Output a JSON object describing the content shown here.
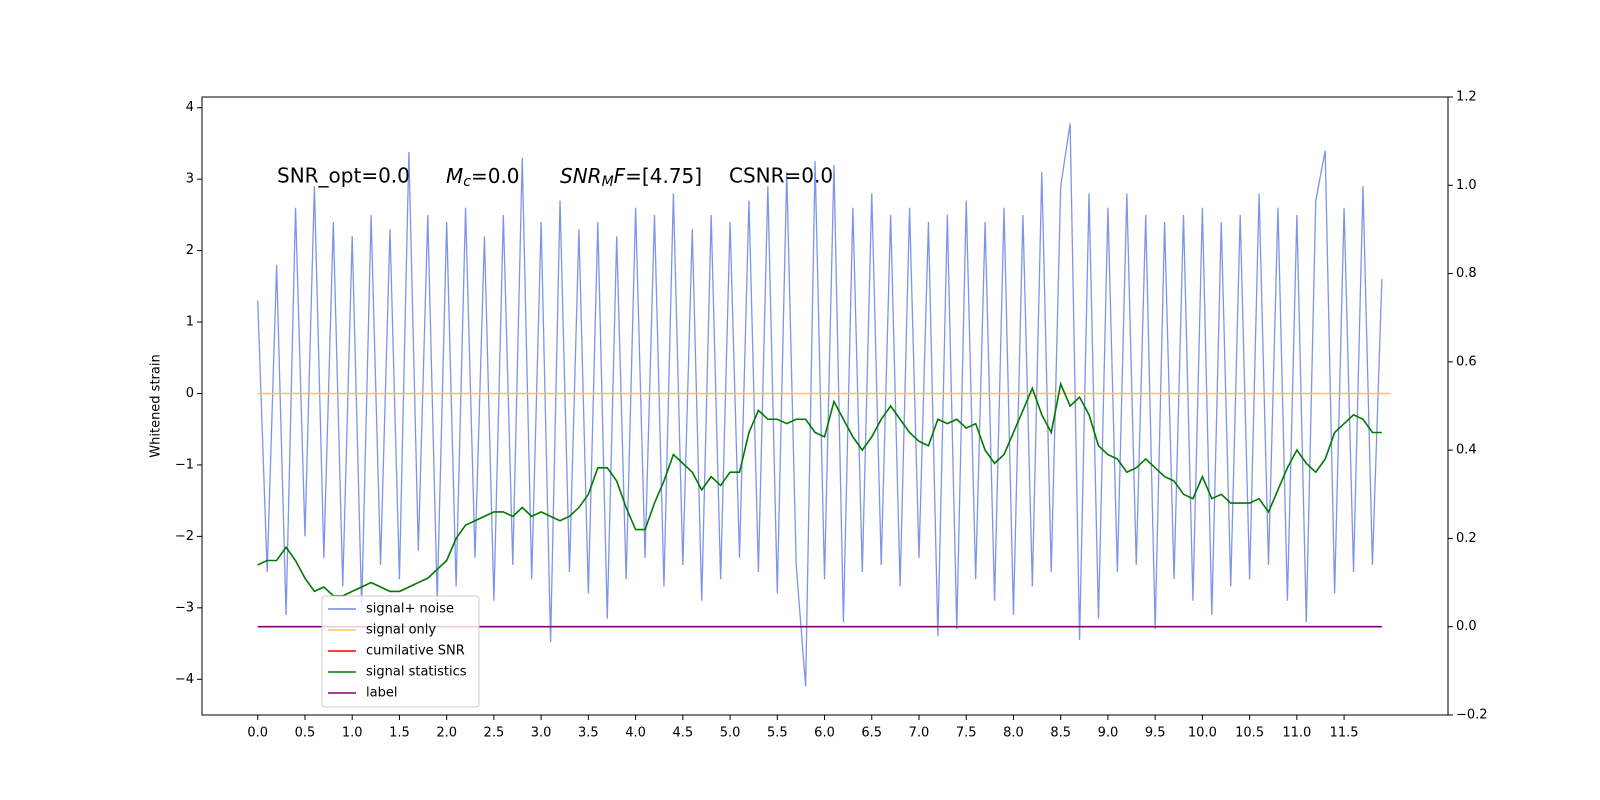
{
  "chart_data": {
    "type": "line",
    "ylabel": "Whitened strain",
    "annotations": [
      {
        "text": "SNR_opt=0.0"
      },
      {
        "main": "M",
        "sub": "c",
        "rest": "=0.0"
      },
      {
        "main": "SNR",
        "sub": "M",
        "mid": "F",
        "rest": "=[4.75]"
      },
      {
        "text": "CSNR=0.0"
      }
    ],
    "x": [
      0,
      0.1,
      0.2,
      0.3,
      0.4,
      0.5,
      0.6,
      0.7,
      0.8,
      0.9,
      1,
      1.1,
      1.2,
      1.3,
      1.4,
      1.5,
      1.6,
      1.7,
      1.8,
      1.9,
      2,
      2.1,
      2.2,
      2.3,
      2.4,
      2.5,
      2.6,
      2.7,
      2.8,
      2.9,
      3,
      3.1,
      3.2,
      3.3,
      3.4,
      3.5,
      3.6,
      3.7,
      3.8,
      3.9,
      4,
      4.1,
      4.2,
      4.3,
      4.4,
      4.5,
      4.6,
      4.7,
      4.8,
      4.9,
      5,
      5.1,
      5.2,
      5.3,
      5.4,
      5.5,
      5.6,
      5.7,
      5.8,
      5.9,
      6,
      6.1,
      6.2,
      6.3,
      6.4,
      6.5,
      6.6,
      6.7,
      6.8,
      6.9,
      7,
      7.1,
      7.2,
      7.3,
      7.4,
      7.5,
      7.6,
      7.7,
      7.8,
      7.9,
      8,
      8.1,
      8.2,
      8.3,
      8.4,
      8.5,
      8.6,
      8.7,
      8.8,
      8.9,
      9,
      9.1,
      9.2,
      9.3,
      9.4,
      9.5,
      9.6,
      9.7,
      9.8,
      9.9,
      10,
      10.1,
      10.2,
      10.3,
      10.4,
      10.5,
      10.6,
      10.7,
      10.8,
      10.9,
      11,
      11.1,
      11.2,
      11.3,
      11.4,
      11.5,
      11.6,
      11.7,
      11.8,
      11.9
    ],
    "series": [
      {
        "name": "signal+ noise",
        "color": "#6f8ae6",
        "values": [
          1.3,
          -2.5,
          1.8,
          -3.1,
          2.6,
          -2.0,
          2.9,
          -2.3,
          2.4,
          -2.7,
          2.2,
          -3.0,
          2.5,
          -2.4,
          2.3,
          -2.6,
          3.38,
          -2.2,
          2.5,
          -2.9,
          2.4,
          -2.7,
          2.6,
          -2.3,
          2.2,
          -2.9,
          2.5,
          -2.4,
          3.3,
          -2.6,
          2.4,
          -3.48,
          2.7,
          -2.5,
          2.3,
          -2.8,
          2.4,
          -3.15,
          2.2,
          -2.6,
          2.6,
          -2.3,
          2.5,
          -2.7,
          2.8,
          -2.4,
          2.3,
          -2.9,
          2.5,
          -2.6,
          2.4,
          -2.3,
          2.7,
          -2.5,
          2.9,
          -2.8,
          3.1,
          -2.4,
          -4.1,
          3.25,
          -2.6,
          3.2,
          -3.2,
          2.6,
          -2.5,
          2.8,
          -2.4,
          2.5,
          -2.7,
          2.6,
          -2.3,
          2.4,
          -3.4,
          2.5,
          -3.3,
          2.7,
          -2.6,
          2.4,
          -2.9,
          2.6,
          -3.1,
          2.5,
          -2.7,
          3.1,
          -2.5,
          2.9,
          3.78,
          -3.45,
          2.8,
          -3.15,
          2.6,
          -2.5,
          2.8,
          -2.4,
          2.5,
          -3.3,
          2.4,
          -2.6,
          2.5,
          -2.9,
          2.6,
          -3.1,
          2.4,
          -2.7,
          2.5,
          -2.6,
          2.8,
          -2.4,
          2.6,
          -2.9,
          2.5,
          -3.2,
          2.7,
          3.4,
          -2.8,
          2.6,
          -2.5,
          2.9,
          -2.4,
          1.6
        ]
      },
      {
        "name": "signal only",
        "color": "#ffc35a",
        "x": [
          0,
          11.99
        ],
        "values": [
          0,
          0
        ]
      },
      {
        "name": "cumilative SNR",
        "color": "#ff0000"
      },
      {
        "name": "signal statistics",
        "color": "#007a00",
        "axis": "y2",
        "values": [
          0.14,
          0.15,
          0.15,
          0.18,
          0.15,
          0.11,
          0.08,
          0.09,
          0.07,
          0.07,
          0.08,
          0.09,
          0.1,
          0.09,
          0.08,
          0.08,
          0.09,
          0.1,
          0.11,
          0.13,
          0.15,
          0.2,
          0.23,
          0.24,
          0.25,
          0.26,
          0.26,
          0.25,
          0.27,
          0.25,
          0.26,
          0.25,
          0.24,
          0.25,
          0.27,
          0.3,
          0.36,
          0.36,
          0.33,
          0.27,
          0.22,
          0.22,
          0.28,
          0.33,
          0.39,
          0.37,
          0.35,
          0.31,
          0.34,
          0.32,
          0.35,
          0.35,
          0.44,
          0.49,
          0.47,
          0.47,
          0.46,
          0.47,
          0.47,
          0.44,
          0.43,
          0.51,
          0.47,
          0.43,
          0.4,
          0.43,
          0.47,
          0.5,
          0.47,
          0.44,
          0.42,
          0.41,
          0.47,
          0.46,
          0.47,
          0.45,
          0.46,
          0.4,
          0.37,
          0.39,
          0.44,
          0.49,
          0.54,
          0.48,
          0.44,
          0.55,
          0.5,
          0.52,
          0.48,
          0.41,
          0.39,
          0.38,
          0.35,
          0.36,
          0.38,
          0.36,
          0.34,
          0.33,
          0.3,
          0.29,
          0.34,
          0.29,
          0.3,
          0.28,
          0.28,
          0.28,
          0.29,
          0.26,
          0.31,
          0.36,
          0.4,
          0.37,
          0.35,
          0.38,
          0.44,
          0.46,
          0.48,
          0.47,
          0.44,
          0.44
        ]
      },
      {
        "name": "label",
        "color": "#800080",
        "axis": "y2",
        "x": [
          0,
          11.9
        ],
        "values": [
          0,
          0
        ]
      }
    ],
    "xlim": [
      -0.59,
      12.6
    ],
    "ylim": [
      -4.5,
      4.15
    ],
    "y2lim": [
      -0.2,
      1.2
    ],
    "xticks": [
      {
        "value": 0,
        "label": "0.0"
      },
      0.5,
      {
        "value": 1,
        "label": "1.0"
      },
      1.5,
      {
        "value": 2,
        "label": "2.0"
      },
      2.5,
      {
        "value": 3,
        "label": "3.0"
      },
      3.5,
      {
        "value": 4,
        "label": "4.0"
      },
      4.5,
      {
        "value": 5,
        "label": "5.0"
      },
      5.5,
      {
        "value": 6,
        "label": "6.0"
      },
      6.5,
      {
        "value": 7,
        "label": "7.0"
      },
      7.5,
      {
        "value": 8,
        "label": "8.0"
      },
      8.5,
      {
        "value": 9,
        "label": "9.0"
      },
      9.5,
      {
        "value": 10,
        "label": "10.0"
      },
      10.5,
      {
        "value": 11,
        "label": "11.0"
      },
      11.5
    ],
    "yticks": [
      {
        "value": -4,
        "label": "−4"
      },
      {
        "value": -3,
        "label": "−3"
      },
      {
        "value": -2,
        "label": "−2"
      },
      {
        "value": -1,
        "label": "−1"
      },
      0,
      1,
      2,
      3,
      4
    ],
    "y2ticks": [
      {
        "value": -0.2,
        "label": "−0.2"
      },
      {
        "value": 0,
        "label": "0.0"
      },
      0.2,
      0.4,
      0.6,
      0.8,
      {
        "value": 1,
        "label": "1.0"
      },
      1.2
    ],
    "legend": "lower left"
  }
}
